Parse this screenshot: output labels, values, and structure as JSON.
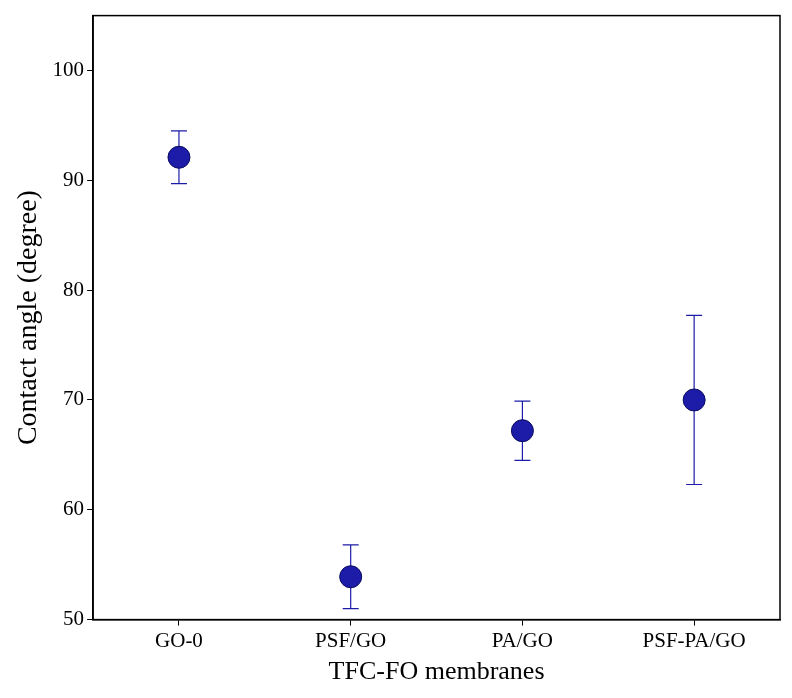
{
  "chart_data": {
    "type": "scatter",
    "x_label": "TFC-FO membranes",
    "y_label": "Contact angle (degree)",
    "categories": [
      "GO-0",
      "PSF/GO",
      "PA/GO",
      "PSF-PA/GO"
    ],
    "values": [
      92.1,
      53.9,
      67.2,
      70.0
    ],
    "errors": [
      2.4,
      2.9,
      2.7,
      7.7
    ],
    "color": "#1c1ca8",
    "marker": "circle",
    "ylim": [
      50,
      105
    ],
    "yticks": [
      50,
      60,
      70,
      80,
      90,
      100
    ],
    "grid": false
  }
}
